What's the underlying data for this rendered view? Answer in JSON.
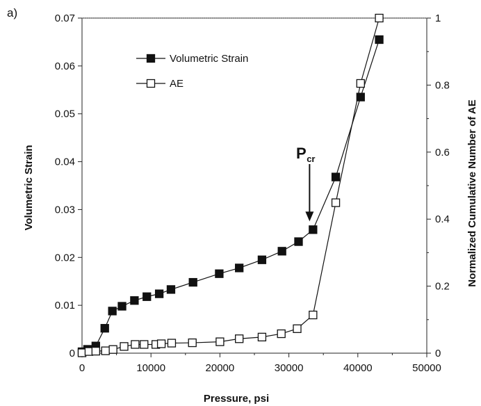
{
  "chart_data": {
    "type": "line",
    "panel_label": "a)",
    "title": "",
    "xlabel": "Pressure, psi",
    "ylabel": "Volumetric Strain",
    "y2label": "Normalized Cumulative Number of AE",
    "xlim": [
      0,
      50000
    ],
    "ylim": [
      0,
      0.07
    ],
    "y2lim": [
      0,
      1
    ],
    "x_ticks": [
      0,
      10000,
      20000,
      30000,
      40000,
      50000
    ],
    "y_ticks": [
      0,
      0.01,
      0.02,
      0.03,
      0.04,
      0.05,
      0.06,
      0.07
    ],
    "y_tick_labels": [
      "0",
      "0.01",
      "0.02",
      "0.03",
      "0.04",
      "0.05",
      "0.06",
      "0.07"
    ],
    "y2_ticks": [
      0,
      0.2,
      0.4,
      0.6,
      0.8,
      1
    ],
    "y2_tick_labels": [
      "0",
      "0.2",
      "0.4",
      "0.6",
      "0.8",
      "1"
    ],
    "grid": false,
    "legend_position": "top-left",
    "series": [
      {
        "name": "Volumetric Strain",
        "axis": "left",
        "marker": "filled-square",
        "color": "#111111",
        "x": [
          0,
          800,
          2000,
          3300,
          4400,
          5800,
          7600,
          9400,
          11200,
          12900,
          16100,
          19900,
          22800,
          26100,
          29000,
          31400,
          33500,
          36800,
          40400,
          43100
        ],
        "y": [
          0.0003,
          0.0008,
          0.0015,
          0.0052,
          0.0088,
          0.0098,
          0.011,
          0.0118,
          0.0124,
          0.0133,
          0.0148,
          0.0166,
          0.0178,
          0.0195,
          0.0213,
          0.0233,
          0.0258,
          0.0368,
          0.0535,
          0.0655
        ]
      },
      {
        "name": "AE",
        "axis": "right",
        "marker": "open-square",
        "color": "#111111",
        "x": [
          0,
          1000,
          2000,
          3400,
          4500,
          6100,
          7700,
          9000,
          10700,
          11500,
          13000,
          16000,
          20000,
          22800,
          26100,
          28900,
          31200,
          33500,
          36800,
          40400,
          43100
        ],
        "y": [
          0.001,
          0.005,
          0.006,
          0.007,
          0.011,
          0.02,
          0.026,
          0.026,
          0.026,
          0.028,
          0.03,
          0.031,
          0.034,
          0.043,
          0.048,
          0.058,
          0.073,
          0.114,
          0.449,
          0.805,
          1.0
        ]
      }
    ],
    "annotations": [
      {
        "text": "P",
        "subscript": "cr",
        "arrow_to_x": 33000,
        "arrow_to_y": 0.0258
      }
    ]
  }
}
